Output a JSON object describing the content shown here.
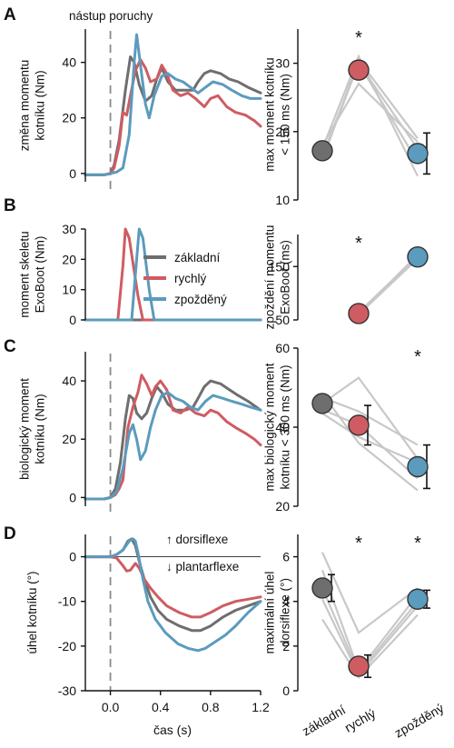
{
  "colors": {
    "zakladni": "#6e6e6e",
    "rychly": "#cf5c62",
    "zpozdeny": "#5b9bbd",
    "subject": "#c8c8c8",
    "onset": "#8a8a8a"
  },
  "panels": {
    "A": "A",
    "B": "B",
    "C": "C",
    "D": "D"
  },
  "onset_label": "nástup poruchy",
  "legend": [
    "základní",
    "rychlý",
    "zpožděný"
  ],
  "annotations": {
    "dorsiflexe": "↑ dorsiflexe",
    "plantarflexe": "↓ plantarflexe"
  },
  "significance_marker": "*",
  "time_axis": {
    "label": "čas (s)",
    "ticks": [
      "0.0",
      "0.4",
      "0.8",
      "1.2"
    ]
  },
  "categories": [
    "základní",
    "rychlý",
    "zpožděný"
  ],
  "chart_data": [
    {
      "type": "line",
      "panel": "A",
      "ylabel": [
        "změna momentu",
        "kotníku (Nm)"
      ],
      "xlim": [
        -0.2,
        1.2
      ],
      "ylim": [
        -3,
        52
      ],
      "yticks": [
        0,
        20,
        40
      ],
      "ytick_labels": [
        "0",
        "20",
        "40"
      ],
      "onset_x": 0,
      "series": [
        {
          "name": "základní",
          "x": [
            -0.2,
            -0.05,
            0,
            0.03,
            0.07,
            0.12,
            0.16,
            0.19,
            0.23,
            0.28,
            0.33,
            0.37,
            0.41,
            0.46,
            0.52,
            0.6,
            0.66,
            0.7,
            0.75,
            0.8,
            0.88,
            0.95,
            1.02,
            1.1,
            1.2
          ],
          "y": [
            -0.5,
            -0.5,
            0,
            3,
            12,
            30,
            42,
            40,
            32,
            26,
            28,
            34,
            38,
            33,
            30,
            30,
            30,
            33,
            36,
            37,
            36,
            34,
            33,
            31,
            29
          ]
        },
        {
          "name": "rychlý",
          "x": [
            -0.2,
            -0.05,
            0,
            0.03,
            0.07,
            0.1,
            0.13,
            0.16,
            0.2,
            0.24,
            0.28,
            0.32,
            0.37,
            0.41,
            0.45,
            0.5,
            0.56,
            0.62,
            0.68,
            0.75,
            0.8,
            0.86,
            0.93,
            1.0,
            1.08,
            1.15,
            1.2
          ],
          "y": [
            -0.5,
            -0.5,
            0,
            2,
            10,
            22,
            21,
            28,
            37,
            41,
            38,
            33,
            34,
            39,
            36,
            30,
            28,
            29,
            27,
            24,
            27,
            28,
            24,
            22,
            21,
            19,
            17
          ]
        },
        {
          "name": "zpožděný",
          "x": [
            -0.2,
            -0.05,
            0,
            0.05,
            0.1,
            0.15,
            0.19,
            0.21,
            0.24,
            0.28,
            0.31,
            0.35,
            0.41,
            0.46,
            0.52,
            0.58,
            0.64,
            0.7,
            0.76,
            0.82,
            0.9,
            0.97,
            1.05,
            1.12,
            1.2
          ],
          "y": [
            -0.5,
            -0.5,
            0,
            0.5,
            2,
            14,
            40,
            50,
            39,
            25,
            20,
            28,
            35,
            36,
            34,
            33,
            31,
            29,
            31,
            33,
            32,
            30,
            28,
            27,
            27
          ]
        }
      ]
    },
    {
      "type": "line",
      "panel": "B",
      "ylabel": [
        "moment skeletu",
        "ExoBoot (Nm)"
      ],
      "xlim": [
        -0.2,
        1.2
      ],
      "ylim": [
        0,
        30
      ],
      "yticks": [
        0,
        10,
        20,
        30
      ],
      "ytick_labels": [
        "0",
        "10",
        "20",
        "30"
      ],
      "series": [
        {
          "name": "základní",
          "x": [
            -0.2,
            1.2
          ],
          "y": [
            0,
            0
          ]
        },
        {
          "name": "rychlý",
          "x": [
            -0.2,
            0.06,
            0.1,
            0.12,
            0.15,
            0.22,
            0.26,
            1.2
          ],
          "y": [
            0,
            0,
            18,
            30,
            27,
            8,
            0,
            0
          ]
        },
        {
          "name": "zpožděný",
          "x": [
            -0.2,
            0.17,
            0.21,
            0.23,
            0.26,
            0.31,
            0.35,
            1.2
          ],
          "y": [
            0,
            0,
            20,
            30,
            27,
            10,
            0,
            0
          ]
        }
      ]
    },
    {
      "type": "line",
      "panel": "C",
      "ylabel": [
        "biologický moment",
        "kotníku (Nm)"
      ],
      "xlim": [
        -0.2,
        1.2
      ],
      "ylim": [
        -3,
        50
      ],
      "yticks": [
        0,
        20,
        40
      ],
      "ytick_labels": [
        "0",
        "20",
        "40"
      ],
      "onset_x": 0,
      "series": [
        {
          "name": "základní",
          "x": [
            -0.2,
            -0.05,
            0,
            0.04,
            0.08,
            0.12,
            0.15,
            0.18,
            0.21,
            0.25,
            0.29,
            0.33,
            0.37,
            0.41,
            0.46,
            0.52,
            0.6,
            0.66,
            0.7,
            0.75,
            0.8,
            0.88,
            0.95,
            1.02,
            1.1,
            1.2
          ],
          "y": [
            -0.5,
            -0.5,
            0,
            3,
            12,
            27,
            35,
            34,
            29,
            27,
            29,
            34,
            38,
            36,
            32,
            30,
            30,
            31,
            34,
            38,
            40,
            39,
            37,
            35,
            33,
            30
          ]
        },
        {
          "name": "rychlý",
          "x": [
            -0.2,
            -0.05,
            0,
            0.04,
            0.07,
            0.1,
            0.14,
            0.18,
            0.22,
            0.25,
            0.29,
            0.33,
            0.36,
            0.4,
            0.45,
            0.5,
            0.56,
            0.62,
            0.68,
            0.75,
            0.8,
            0.86,
            0.93,
            1.0,
            1.08,
            1.15,
            1.2
          ],
          "y": [
            -0.5,
            -0.5,
            0,
            1,
            3,
            6,
            24,
            31,
            36,
            42,
            39,
            35,
            38,
            40,
            37,
            30,
            29,
            31,
            29,
            28,
            30,
            29,
            26,
            24,
            22,
            20,
            18
          ]
        },
        {
          "name": "zpožděný",
          "x": [
            -0.2,
            -0.05,
            0,
            0.05,
            0.1,
            0.15,
            0.18,
            0.21,
            0.24,
            0.28,
            0.32,
            0.36,
            0.41,
            0.46,
            0.52,
            0.58,
            0.64,
            0.7,
            0.76,
            0.82,
            0.9,
            0.97,
            1.05,
            1.12,
            1.2
          ],
          "y": [
            -0.5,
            -0.5,
            0,
            2,
            10,
            22,
            25,
            20,
            13,
            16,
            24,
            30,
            35,
            36,
            34,
            33,
            31,
            30,
            33,
            35,
            34,
            33,
            32,
            31,
            30
          ]
        }
      ]
    },
    {
      "type": "line",
      "panel": "D",
      "ylabel": [
        "úhel kotníku (°)"
      ],
      "xlim": [
        -0.2,
        1.2
      ],
      "ylim": [
        -30,
        5
      ],
      "yticks": [
        -30,
        -20,
        -10,
        0
      ],
      "ytick_labels": [
        "-30",
        "-20",
        "-10",
        "0"
      ],
      "onset_x": 0,
      "reference_y": 0,
      "series": [
        {
          "name": "základní",
          "x": [
            -0.2,
            0,
            0.05,
            0.1,
            0.14,
            0.17,
            0.2,
            0.23,
            0.27,
            0.32,
            0.38,
            0.45,
            0.55,
            0.65,
            0.72,
            0.8,
            0.9,
            1.0,
            1.1,
            1.2
          ],
          "y": [
            0,
            0,
            0.5,
            1.5,
            3.5,
            4,
            2.5,
            -1,
            -5,
            -9,
            -12,
            -14,
            -15.5,
            -16.5,
            -16.5,
            -15.5,
            -13.5,
            -12,
            -11,
            -10
          ]
        },
        {
          "name": "rychlý",
          "x": [
            -0.2,
            0,
            0.05,
            0.1,
            0.13,
            0.16,
            0.2,
            0.23,
            0.27,
            0.32,
            0.38,
            0.45,
            0.55,
            0.65,
            0.72,
            0.8,
            0.9,
            1.0,
            1.1,
            1.2
          ],
          "y": [
            0,
            0,
            -0.3,
            -2,
            -3.2,
            -3,
            -1.5,
            -2.5,
            -5,
            -7,
            -9,
            -11,
            -12.5,
            -13.5,
            -13.5,
            -12.5,
            -11,
            -10,
            -9.5,
            -9
          ]
        },
        {
          "name": "zpožděný",
          "x": [
            -0.2,
            0,
            0.05,
            0.1,
            0.15,
            0.18,
            0.2,
            0.22,
            0.26,
            0.3,
            0.36,
            0.44,
            0.54,
            0.62,
            0.7,
            0.76,
            0.84,
            0.92,
            1.0,
            1.1,
            1.2
          ],
          "y": [
            0,
            0,
            0.5,
            1.5,
            3.5,
            4,
            3.5,
            1,
            -5,
            -10,
            -14,
            -17,
            -19.5,
            -20.5,
            -21,
            -20.5,
            -19,
            -17.5,
            -15.5,
            -12.5,
            -10
          ]
        }
      ]
    },
    {
      "type": "scatter",
      "panel": "A",
      "ylabel": [
        "max moment kotníku",
        "< 150 ms (Nm)"
      ],
      "ylim": [
        10,
        35
      ],
      "yticks": [
        10,
        20,
        30
      ],
      "ytick_labels": [
        "10",
        "20",
        "30"
      ],
      "means": [
        17.2,
        29.0,
        16.8
      ],
      "errors": [
        null,
        null,
        3.0
      ],
      "significant": [
        false,
        true,
        false
      ],
      "subjects": [
        [
          17.5,
          31.0,
          13.5
        ],
        [
          16.5,
          30.0,
          15.5
        ],
        [
          16.0,
          30.0,
          17.5
        ],
        [
          15.8,
          30.5,
          19.0
        ],
        [
          18.0,
          27.0,
          18.5
        ]
      ]
    },
    {
      "type": "scatter",
      "panel": "B",
      "ylabel": [
        "zpoždění momentu",
        "ExoBoot (ms)"
      ],
      "ylim": [
        50,
        210
      ],
      "yticks": [
        50,
        150
      ],
      "ytick_labels": [
        "50",
        "150"
      ],
      "means": [
        null,
        62,
        168
      ],
      "errors": [
        null,
        null,
        null
      ],
      "significant": [
        false,
        true,
        false
      ],
      "subjects": [
        [
          null,
          60,
          165
        ],
        [
          null,
          64,
          170
        ],
        [
          null,
          61,
          172
        ],
        [
          null,
          63,
          166
        ]
      ]
    },
    {
      "type": "scatter",
      "panel": "C",
      "ylabel": [
        "max biologický moment",
        "kotníku < 300 ms (Nm)"
      ],
      "ylim": [
        20,
        60
      ],
      "yticks": [
        20,
        40,
        60
      ],
      "ytick_labels": [
        "20",
        "40",
        "60"
      ],
      "means": [
        46.0,
        40.5,
        30.0
      ],
      "errors": [
        null,
        5.0,
        5.5
      ],
      "significant": [
        false,
        false,
        true
      ],
      "subjects": [
        [
          46.0,
          52.5,
          32.0
        ],
        [
          47.5,
          44.0,
          35.5
        ],
        [
          48.5,
          36.0,
          24.0
        ],
        [
          44.5,
          40.5,
          27.0
        ],
        [
          43.5,
          37.5,
          31.0
        ]
      ]
    },
    {
      "type": "scatter",
      "panel": "D",
      "ylabel": [
        "maximální úhel",
        "dorsiflexe (°)"
      ],
      "ylim": [
        0,
        7
      ],
      "yticks": [
        0,
        2,
        4,
        6
      ],
      "ytick_labels": [
        "0",
        "2",
        "4",
        "6"
      ],
      "means": [
        4.6,
        1.1,
        4.1
      ],
      "errors": [
        0.6,
        0.5,
        0.4
      ],
      "significant": [
        false,
        true,
        true
      ],
      "subjects": [
        [
          6.2,
          2.6,
          4.6
        ],
        [
          5.4,
          0.9,
          4.3
        ],
        [
          4.6,
          0.8,
          4.0
        ],
        [
          4.1,
          0.7,
          3.8
        ],
        [
          3.2,
          0.6,
          3.4
        ]
      ]
    }
  ]
}
